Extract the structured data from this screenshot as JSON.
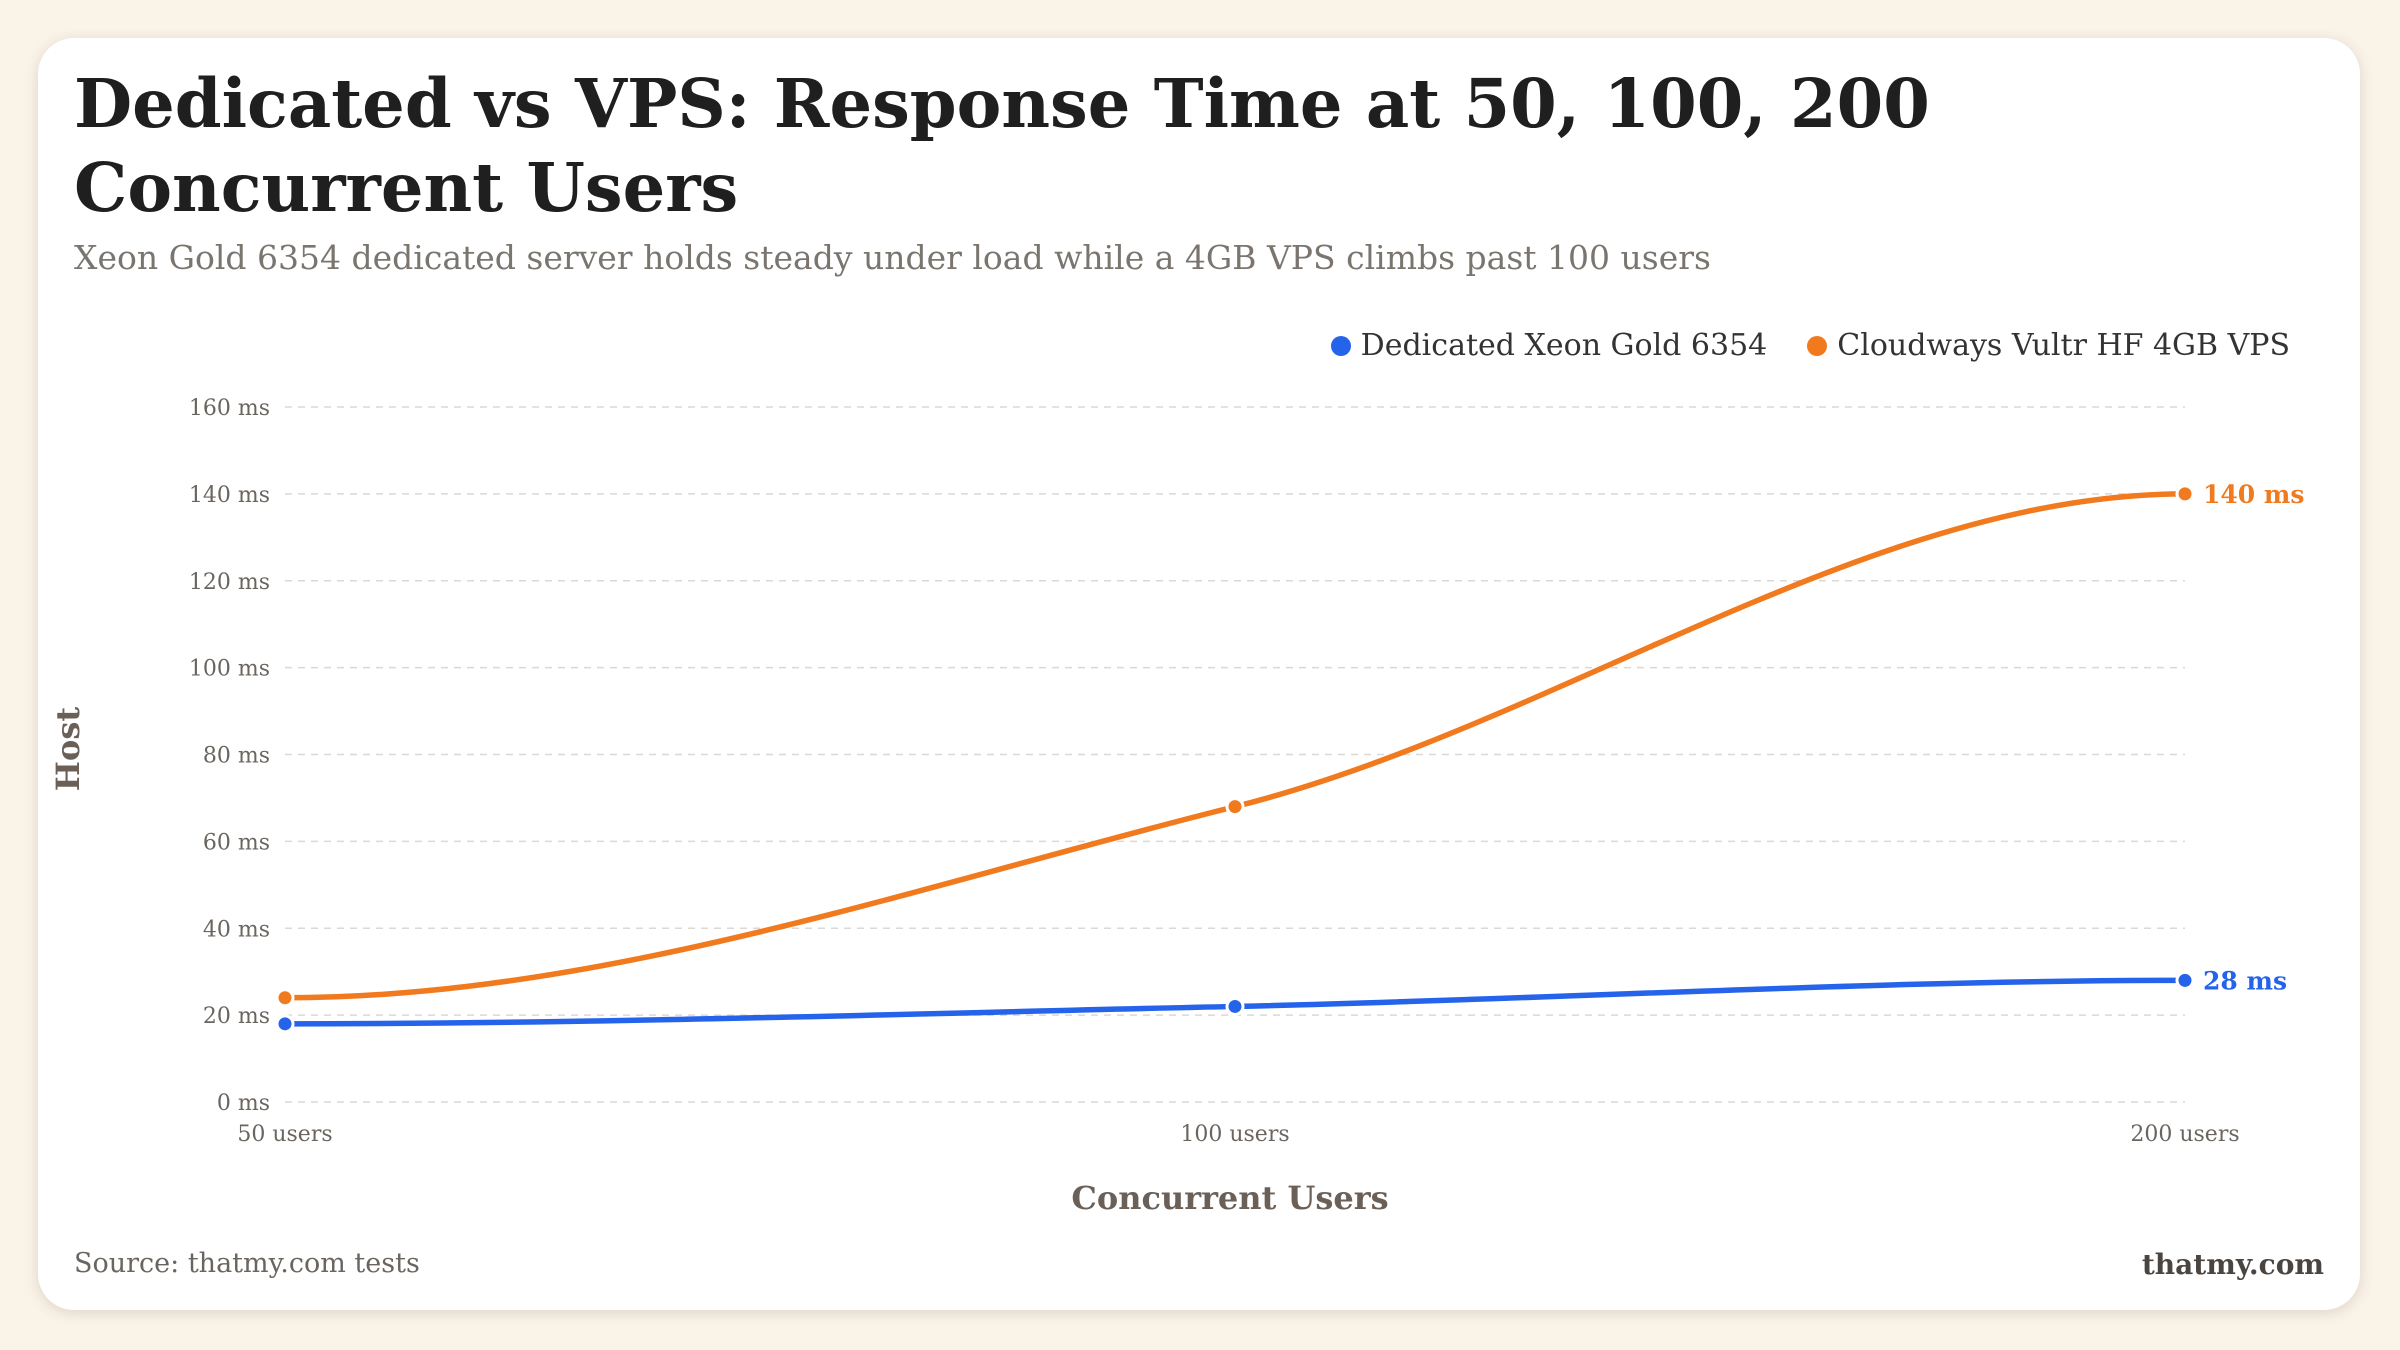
{
  "title": "Dedicated vs VPS: Response Time at 50, 100, 200 Concurrent Users",
  "subtitle": "Xeon Gold 6354 dedicated server holds steady under load while a 4GB VPS climbs past 100 users",
  "footer": {
    "source": "Source: thatmy.com tests",
    "brand": "thatmy.com"
  },
  "chart_data": {
    "type": "line",
    "categories": [
      "50 users",
      "100 users",
      "200 users"
    ],
    "series": [
      {
        "name": "Dedicated Xeon Gold 6354",
        "values": [
          18,
          22,
          28
        ],
        "color": "#2563eb",
        "end_label": "28 ms"
      },
      {
        "name": "Cloudways Vultr HF 4GB VPS",
        "values": [
          24,
          68,
          140
        ],
        "color": "#f07a1d",
        "end_label": "140 ms"
      }
    ],
    "xlabel": "Concurrent Users",
    "ylabel": "Host",
    "ylim": [
      0,
      160
    ],
    "yticks": [
      "0 ms",
      "20 ms",
      "40 ms",
      "60 ms",
      "80 ms",
      "100 ms",
      "120 ms",
      "140 ms",
      "160 ms"
    ],
    "grid": true,
    "legend_position": "top-right"
  }
}
